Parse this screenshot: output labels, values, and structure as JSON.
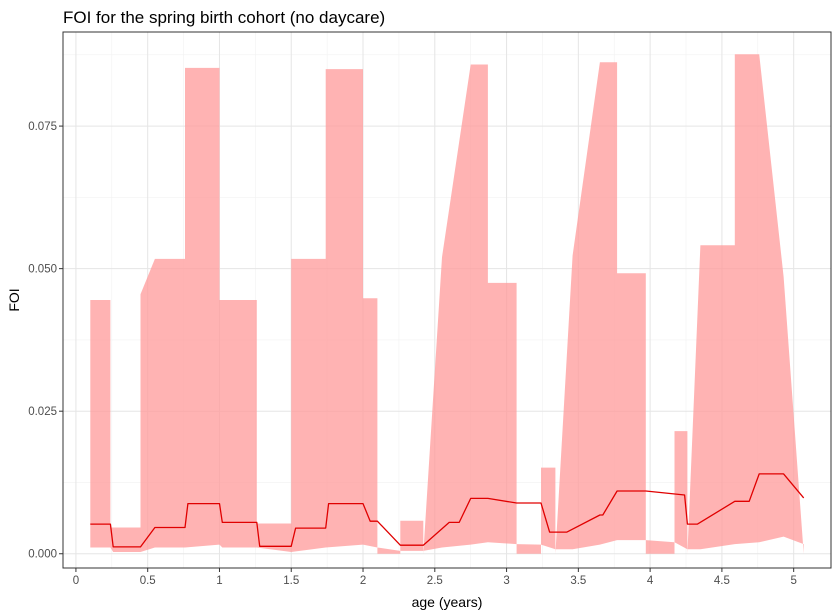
{
  "chart_data": {
    "type": "line",
    "title": "FOI for the spring birth cohort (no daycare)",
    "xlabel": "age (years)",
    "ylabel": "FOI",
    "xlim": [
      -0.09,
      5.26
    ],
    "ylim": [
      -0.0025,
      0.0915
    ],
    "x_ticks": [
      0,
      0.5,
      1,
      1.5,
      2,
      2.5,
      3,
      3.5,
      4,
      4.5,
      5
    ],
    "x_tick_labels": [
      "0",
      "0.5",
      "1",
      "1.5",
      "2",
      "2.5",
      "3",
      "3.5",
      "4",
      "4.5",
      "5"
    ],
    "y_ticks": [
      0,
      0.025,
      0.05,
      0.075
    ],
    "y_tick_labels": [
      "0.000",
      "0.025",
      "0.050",
      "0.075"
    ],
    "grid": true,
    "legend": "none",
    "colors": {
      "band": "#ff9999",
      "line": "#e00000",
      "grid_major": "#e5e5e5",
      "grid_minor": "#f2f2f2",
      "border": "#333333"
    },
    "series": [
      {
        "role": "upper",
        "x": [
          0.1,
          0.24,
          0.24,
          0.45,
          0.45,
          0.55,
          0.55,
          0.76,
          0.76,
          1.0,
          1.0,
          1.26,
          1.26,
          1.5,
          1.5,
          1.74,
          1.74,
          2.0,
          2.0,
          2.1,
          2.1,
          2.26,
          2.26,
          2.42,
          2.42,
          2.55,
          2.55,
          2.75,
          2.75,
          2.87,
          2.87,
          3.07,
          3.07,
          3.24,
          3.24,
          3.34,
          3.34,
          3.46,
          3.46,
          3.65,
          3.65,
          3.77,
          3.77,
          3.97,
          3.97,
          4.17,
          4.17,
          4.26,
          4.26,
          4.35,
          4.35,
          4.59,
          4.59,
          4.76,
          4.76,
          4.93,
          4.93,
          5.07
        ],
        "values": [
          0.0445,
          0.0445,
          0.0046,
          0.0046,
          0.0455,
          0.0517,
          0.0517,
          0.0517,
          0.0852,
          0.0852,
          0.0445,
          0.0445,
          0.0053,
          0.0053,
          0.0517,
          0.0517,
          0.085,
          0.085,
          0.0448,
          0.0448,
          0.0,
          0.0,
          0.0058,
          0.0058,
          0.0,
          0.052,
          0.052,
          0.0858,
          0.0858,
          0.0858,
          0.0475,
          0.0475,
          0.0,
          0.0,
          0.0151,
          0.0151,
          0.0,
          0.0523,
          0.0523,
          0.0862,
          0.0862,
          0.0862,
          0.0492,
          0.0492,
          0.0,
          0.0,
          0.0215,
          0.0215,
          0.0,
          0.0541,
          0.0541,
          0.0541,
          0.0876,
          0.0876,
          0.0876,
          0.0486,
          0.0486,
          0.0
        ]
      },
      {
        "role": "lower",
        "x": [
          0.1,
          0.24,
          0.26,
          0.45,
          0.55,
          0.76,
          1.0,
          1.02,
          1.26,
          1.5,
          1.74,
          2.0,
          2.1,
          2.26,
          2.42,
          2.55,
          2.75,
          2.87,
          3.07,
          3.24,
          3.34,
          3.46,
          3.65,
          3.77,
          3.97,
          4.17,
          4.26,
          4.35,
          4.59,
          4.76,
          4.93,
          5.07
        ],
        "values": [
          0.0011,
          0.0011,
          0.0003,
          0.0003,
          0.0011,
          0.0011,
          0.0016,
          0.0011,
          0.0011,
          0.0003,
          0.0011,
          0.0016,
          0.0011,
          0.0005,
          0.0005,
          0.0011,
          0.0016,
          0.002,
          0.0017,
          0.0016,
          0.0008,
          0.0008,
          0.0016,
          0.0024,
          0.0024,
          0.002,
          0.0008,
          0.0008,
          0.0017,
          0.002,
          0.003,
          0.0017
        ]
      },
      {
        "role": "median",
        "x": [
          0.1,
          0.24,
          0.26,
          0.45,
          0.55,
          0.76,
          0.78,
          1.0,
          1.02,
          1.26,
          1.28,
          1.5,
          1.53,
          1.74,
          1.76,
          2.0,
          2.05,
          2.1,
          2.26,
          2.42,
          2.6,
          2.67,
          2.75,
          2.87,
          3.07,
          3.24,
          3.3,
          3.42,
          3.65,
          3.67,
          3.77,
          3.97,
          4.24,
          4.26,
          4.33,
          4.59,
          4.69,
          4.76,
          4.93,
          5.07
        ],
        "values": [
          0.0052,
          0.0052,
          0.0012,
          0.0012,
          0.0046,
          0.0046,
          0.0088,
          0.0088,
          0.0055,
          0.0055,
          0.0013,
          0.0013,
          0.0045,
          0.0045,
          0.0088,
          0.0088,
          0.0057,
          0.0057,
          0.0015,
          0.0015,
          0.0055,
          0.0055,
          0.0097,
          0.0097,
          0.0089,
          0.0089,
          0.0038,
          0.0038,
          0.0068,
          0.0068,
          0.011,
          0.011,
          0.0103,
          0.0052,
          0.0052,
          0.0092,
          0.0092,
          0.014,
          0.014,
          0.0098
        ]
      }
    ]
  }
}
